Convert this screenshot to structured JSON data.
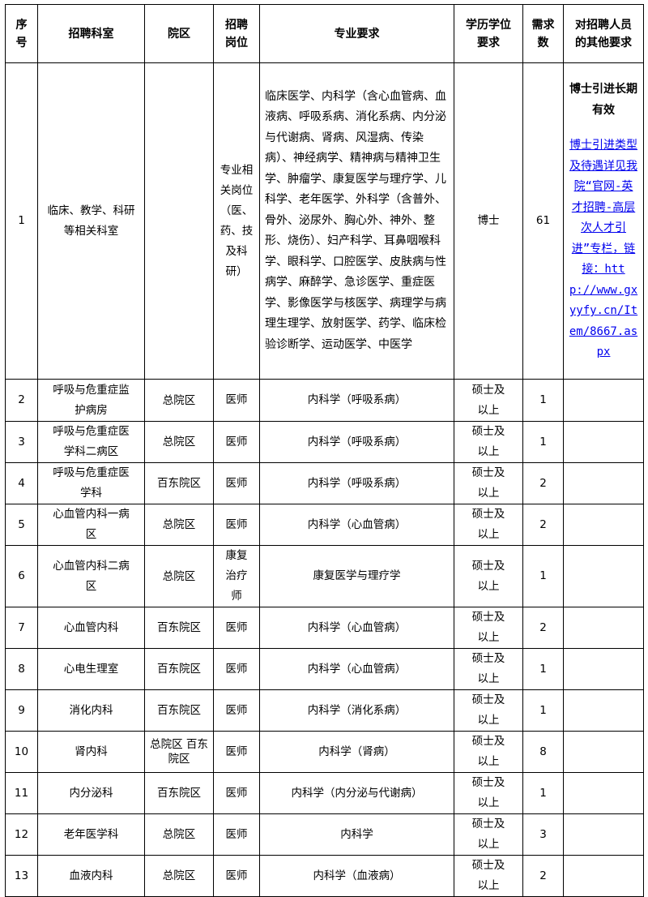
{
  "headers": [
    "序号",
    "招聘科室",
    "院区",
    "招聘岗位",
    "专业要求",
    "学历学位要求",
    "需求数",
    "对招聘人员的其他要求"
  ],
  "first_row": {
    "no": "1",
    "dept": "临床、教学、科研等相关科室",
    "campus": "",
    "position": "专业相关岗位（医、药、技及科研）",
    "major": "临床医学、内科学（含心血管病、血液病、呼吸系病、消化系病、内分泌与代谢病、肾病、风湿病、传染病）、神经病学、精神病与精神卫生学、肿瘤学、康复医学与理疗学、儿科学、老年医学、外科学（含普外、骨外、泌尿外、胸心外、神外、整形、烧伤）、妇产科学、耳鼻咽喉科学、眼科学、口腔医学、皮肤病与性病学、麻醉学、急诊医学、重症医学、影像医学与核医学、病理学与病理生理学、放射医学、药学、临床检验诊断学、运动医学、中医学",
    "degree": "博士",
    "count": "61",
    "note_title": "博士引进长期有效",
    "note_link": "博士引进类型及待遇详见我院“官网-英才招聘-高层次人才引进”专栏，链接：http://www.gxyyfy.cn/Item/8667.aspx"
  },
  "rows": [
    {
      "no": "2",
      "dept": "呼吸与危重症监护病房",
      "campus": "总院区",
      "position": "医师",
      "major": "内科学（呼吸系病）",
      "degree": "硕士及以上",
      "count": "1"
    },
    {
      "no": "3",
      "dept": "呼吸与危重症医学科二病区",
      "campus": "总院区",
      "position": "医师",
      "major": "内科学（呼吸系病）",
      "degree": "硕士及以上",
      "count": "1"
    },
    {
      "no": "4",
      "dept": "呼吸与危重症医学科",
      "campus": "百东院区",
      "position": "医师",
      "major": "内科学（呼吸系病）",
      "degree": "硕士及以上",
      "count": "2"
    },
    {
      "no": "5",
      "dept": "心血管内科一病区",
      "campus": "总院区",
      "position": "医师",
      "major": "内科学（心血管病）",
      "degree": "硕士及以上",
      "count": "2"
    },
    {
      "no": "6",
      "dept": "心血管内科二病区",
      "campus": "总院区",
      "position": "康复治疗师",
      "major": "康复医学与理疗学",
      "degree": "硕士及以上",
      "count": "1"
    },
    {
      "no": "7",
      "dept": "心血管内科",
      "campus": "百东院区",
      "position": "医师",
      "major": "内科学（心血管病）",
      "degree": "硕士及以上",
      "count": "2"
    },
    {
      "no": "8",
      "dept": "心电生理室",
      "campus": "百东院区",
      "position": "医师",
      "major": "内科学（心血管病）",
      "degree": "硕士及以上",
      "count": "1"
    },
    {
      "no": "9",
      "dept": "消化内科",
      "campus": "百东院区",
      "position": "医师",
      "major": "内科学（消化系病）",
      "degree": "硕士及以上",
      "count": "1"
    },
    {
      "no": "10",
      "dept": "肾内科",
      "campus": "总院区 百东院区",
      "position": "医师",
      "major": "内科学（肾病）",
      "degree": "硕士及以上",
      "count": "8"
    },
    {
      "no": "11",
      "dept": "内分泌科",
      "campus": "百东院区",
      "position": "医师",
      "major": "内科学（内分泌与代谢病）",
      "degree": "硕士及以上",
      "count": "1"
    },
    {
      "no": "12",
      "dept": "老年医学科",
      "campus": "总院区",
      "position": "医师",
      "major": "内科学",
      "degree": "硕士及以上",
      "count": "3"
    },
    {
      "no": "13",
      "dept": "血液内科",
      "campus": "总院区",
      "position": "医师",
      "major": "内科学（血液病）",
      "degree": "硕士及以上",
      "count": "2"
    }
  ]
}
